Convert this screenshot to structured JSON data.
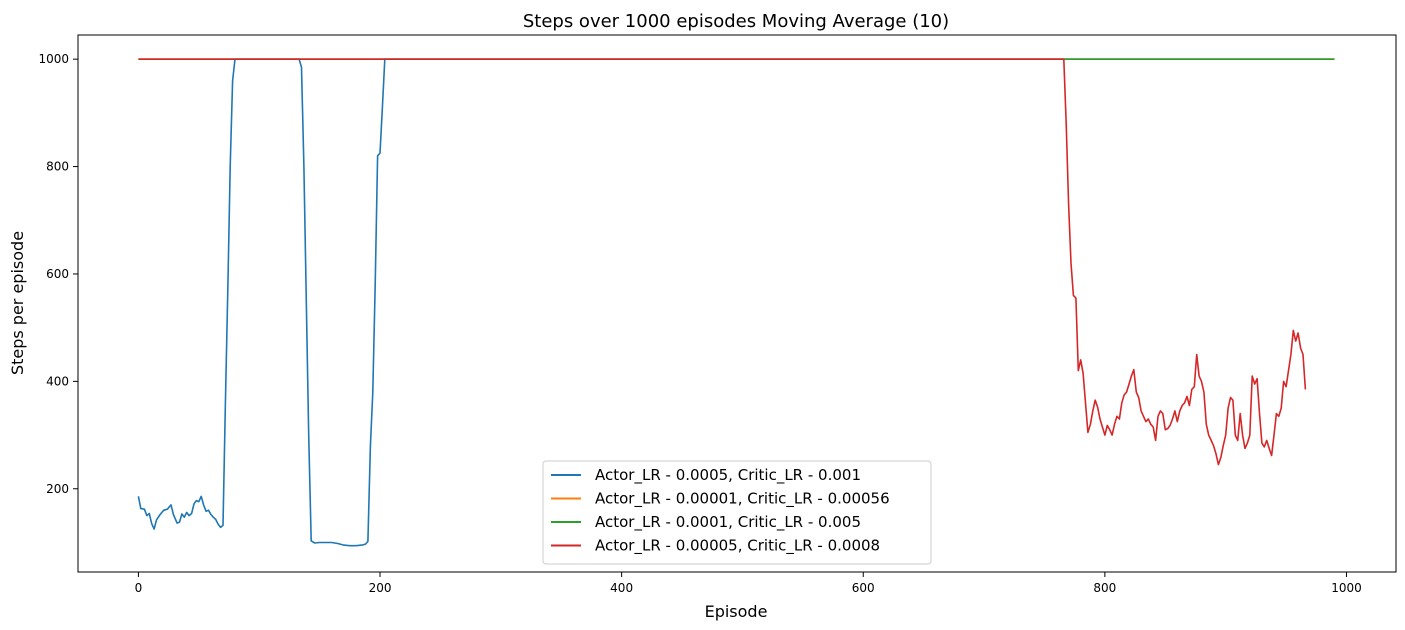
{
  "chart_data": {
    "type": "line",
    "title": "Steps over 1000 episodes Moving Average (10)",
    "xlabel": "Episode",
    "ylabel": "Steps per episode",
    "xlim": [
      -50,
      1041
    ],
    "ylim": [
      45,
      1045
    ],
    "xticks": [
      0,
      200,
      400,
      600,
      800,
      1000
    ],
    "yticks": [
      200,
      400,
      600,
      800,
      1000
    ],
    "grid": false,
    "legend_position": "lower-center",
    "series": [
      {
        "name": "Actor_LR - 0.0005, Critic_LR - 0.001",
        "color": "#1f77b4",
        "points": [
          [
            0,
            186
          ],
          [
            2,
            163
          ],
          [
            5,
            162
          ],
          [
            7,
            150
          ],
          [
            9,
            154
          ],
          [
            11,
            135
          ],
          [
            13,
            125
          ],
          [
            15,
            142
          ],
          [
            18,
            152
          ],
          [
            21,
            160
          ],
          [
            24,
            162
          ],
          [
            27,
            170
          ],
          [
            29,
            152
          ],
          [
            32,
            136
          ],
          [
            34,
            138
          ],
          [
            36,
            153
          ],
          [
            38,
            147
          ],
          [
            40,
            156
          ],
          [
            42,
            150
          ],
          [
            44,
            154
          ],
          [
            46,
            172
          ],
          [
            48,
            178
          ],
          [
            50,
            176
          ],
          [
            52,
            186
          ],
          [
            54,
            170
          ],
          [
            56,
            158
          ],
          [
            58,
            160
          ],
          [
            60,
            152
          ],
          [
            62,
            147
          ],
          [
            64,
            143
          ],
          [
            66,
            134
          ],
          [
            68,
            128
          ],
          [
            70,
            132
          ],
          [
            72,
            360
          ],
          [
            74,
            570
          ],
          [
            76,
            800
          ],
          [
            78,
            960
          ],
          [
            80,
            1000
          ],
          [
            100,
            1000
          ],
          [
            120,
            1000
          ],
          [
            133,
            1000
          ],
          [
            135,
            985
          ],
          [
            137,
            800
          ],
          [
            139,
            550
          ],
          [
            141,
            300
          ],
          [
            143,
            103
          ],
          [
            146,
            99
          ],
          [
            150,
            100
          ],
          [
            155,
            100
          ],
          [
            160,
            100
          ],
          [
            165,
            98
          ],
          [
            170,
            95
          ],
          [
            175,
            94
          ],
          [
            180,
            94
          ],
          [
            185,
            95
          ],
          [
            188,
            97
          ],
          [
            190,
            102
          ],
          [
            192,
            280
          ],
          [
            194,
            380
          ],
          [
            196,
            580
          ],
          [
            198,
            820
          ],
          [
            200,
            825
          ],
          [
            202,
            910
          ],
          [
            204,
            1000
          ],
          [
            300,
            1000
          ],
          [
            500,
            1000
          ],
          [
            700,
            1000
          ],
          [
            900,
            1000
          ],
          [
            990,
            1000
          ]
        ]
      },
      {
        "name": "Actor_LR - 0.00001, Critic_LR - 0.00056",
        "color": "#ff7f0e",
        "points": [
          [
            0,
            1000
          ],
          [
            990,
            1000
          ]
        ]
      },
      {
        "name": "Actor_LR - 0.0001, Critic_LR - 0.005",
        "color": "#2ca02c",
        "points": [
          [
            0,
            1000
          ],
          [
            990,
            1000
          ]
        ]
      },
      {
        "name": "Actor_LR - 0.00005, Critic_LR - 0.0008",
        "color": "#d62728",
        "points": [
          [
            0,
            1000
          ],
          [
            766,
            1000
          ],
          [
            768,
            880
          ],
          [
            770,
            730
          ],
          [
            772,
            620
          ],
          [
            774,
            560
          ],
          [
            776,
            555
          ],
          [
            778,
            420
          ],
          [
            780,
            440
          ],
          [
            782,
            415
          ],
          [
            784,
            360
          ],
          [
            786,
            305
          ],
          [
            788,
            320
          ],
          [
            790,
            345
          ],
          [
            792,
            365
          ],
          [
            794,
            352
          ],
          [
            796,
            330
          ],
          [
            798,
            315
          ],
          [
            800,
            300
          ],
          [
            802,
            318
          ],
          [
            804,
            310
          ],
          [
            806,
            300
          ],
          [
            808,
            320
          ],
          [
            810,
            335
          ],
          [
            812,
            330
          ],
          [
            814,
            360
          ],
          [
            816,
            375
          ],
          [
            818,
            380
          ],
          [
            820,
            395
          ],
          [
            822,
            410
          ],
          [
            824,
            422
          ],
          [
            826,
            380
          ],
          [
            828,
            370
          ],
          [
            830,
            345
          ],
          [
            832,
            335
          ],
          [
            834,
            325
          ],
          [
            836,
            330
          ],
          [
            838,
            320
          ],
          [
            840,
            315
          ],
          [
            842,
            290
          ],
          [
            844,
            335
          ],
          [
            846,
            345
          ],
          [
            848,
            340
          ],
          [
            850,
            310
          ],
          [
            852,
            312
          ],
          [
            854,
            318
          ],
          [
            856,
            330
          ],
          [
            858,
            345
          ],
          [
            860,
            325
          ],
          [
            862,
            345
          ],
          [
            864,
            355
          ],
          [
            866,
            360
          ],
          [
            868,
            372
          ],
          [
            870,
            355
          ],
          [
            872,
            385
          ],
          [
            874,
            390
          ],
          [
            876,
            450
          ],
          [
            878,
            410
          ],
          [
            880,
            400
          ],
          [
            882,
            380
          ],
          [
            884,
            320
          ],
          [
            886,
            300
          ],
          [
            888,
            290
          ],
          [
            890,
            280
          ],
          [
            892,
            265
          ],
          [
            894,
            245
          ],
          [
            896,
            258
          ],
          [
            898,
            280
          ],
          [
            900,
            300
          ],
          [
            902,
            350
          ],
          [
            904,
            370
          ],
          [
            906,
            365
          ],
          [
            908,
            300
          ],
          [
            910,
            290
          ],
          [
            912,
            340
          ],
          [
            914,
            300
          ],
          [
            916,
            275
          ],
          [
            918,
            285
          ],
          [
            920,
            300
          ],
          [
            922,
            410
          ],
          [
            924,
            395
          ],
          [
            926,
            405
          ],
          [
            928,
            340
          ],
          [
            930,
            285
          ],
          [
            932,
            278
          ],
          [
            934,
            290
          ],
          [
            936,
            275
          ],
          [
            938,
            262
          ],
          [
            940,
            300
          ],
          [
            942,
            340
          ],
          [
            944,
            335
          ],
          [
            946,
            350
          ],
          [
            948,
            400
          ],
          [
            950,
            390
          ],
          [
            952,
            420
          ],
          [
            954,
            450
          ],
          [
            956,
            495
          ],
          [
            958,
            475
          ],
          [
            960,
            490
          ],
          [
            962,
            462
          ],
          [
            964,
            450
          ],
          [
            966,
            385
          ]
        ]
      }
    ]
  }
}
